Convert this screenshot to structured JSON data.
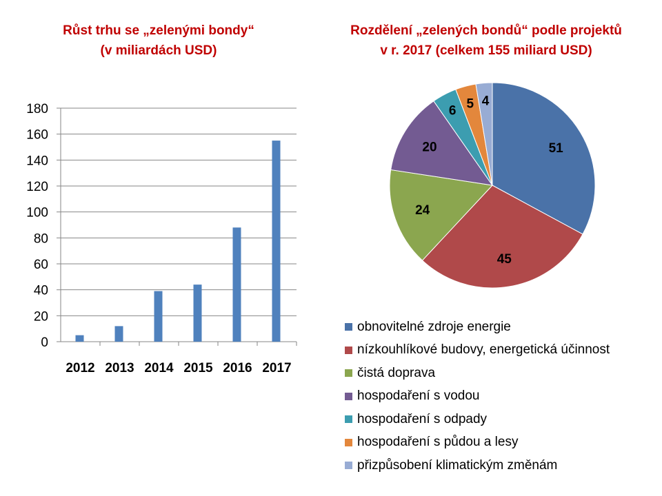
{
  "bar_title": [
    "Růst trhu se „zelenými bondy“",
    "(v  miliardách USD)"
  ],
  "pie_title": [
    "Rozdělení „zelených bondů“ podle projektů",
    "v r. 2017 (celkem 155 miliard USD)"
  ],
  "chart_data": [
    {
      "type": "bar",
      "categories": [
        "2012",
        "2013",
        "2014",
        "2015",
        "2016",
        "2017"
      ],
      "values": [
        5,
        12,
        39,
        44,
        88,
        155
      ],
      "ylim": [
        0,
        180
      ],
      "yticks": [
        "0",
        "20",
        "40",
        "60",
        "80",
        "100",
        "120",
        "140",
        "160",
        "180"
      ],
      "grid": true,
      "bar_color": "#4f81bd"
    },
    {
      "type": "pie",
      "labels": [
        "obnovitelné zdroje energie",
        "nízkouhlíkové budovy, energetická účinnost",
        "čistá doprava",
        "hospodaření s vodou",
        "hospodaření s odpady",
        "hospodaření s půdou a lesy",
        "přizpůsobení klimatickým změnám"
      ],
      "values": [
        51,
        45,
        24,
        20,
        6,
        5,
        4
      ],
      "colors": [
        "#4a72a8",
        "#b0494a",
        "#8ba64f",
        "#735b92",
        "#3c9db0",
        "#e3873c",
        "#98acd4"
      ],
      "legend_position": "bottom"
    }
  ]
}
